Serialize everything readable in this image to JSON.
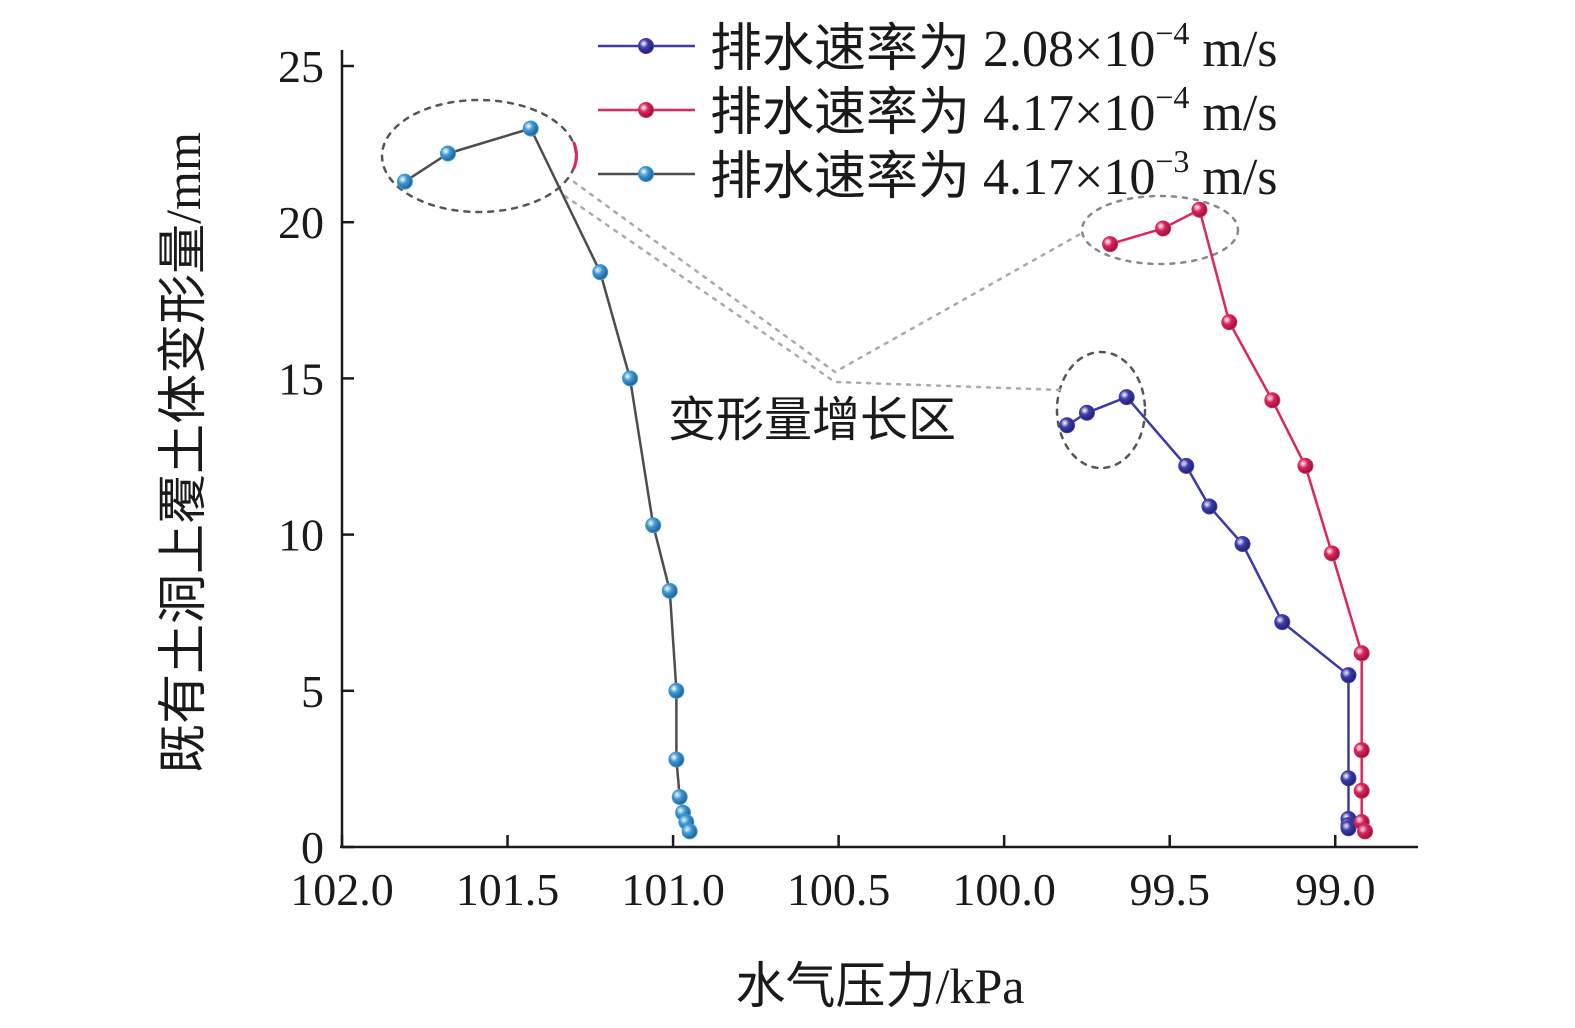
{
  "chart_data": {
    "type": "line",
    "title": "",
    "xlabel": "水气压力/kPa",
    "ylabel": "既有土洞上覆土体变形量/mm",
    "xlim": [
      102.0,
      98.75
    ],
    "ylim": [
      0,
      25
    ],
    "x_reversed": true,
    "x_ticks": [
      "102.0",
      "101.5",
      "101.0",
      "100.5",
      "100.0",
      "99.5",
      "99.0"
    ],
    "y_ticks": [
      "0",
      "5",
      "10",
      "15",
      "20",
      "25"
    ],
    "grid": false,
    "legend_position": "top-right",
    "annotation": "变形量增长区",
    "series": [
      {
        "name_prefix": "排水速率为 ",
        "name_value": "2.08×10",
        "name_exp": "−4",
        "name_unit": " m/s",
        "color": "#3b3aa8",
        "marker_color": "#3f3dab",
        "x": [
          99.81,
          99.75,
          99.63,
          99.45,
          99.38,
          99.28,
          99.16,
          98.96,
          98.96,
          98.96,
          98.96,
          98.96
        ],
        "y": [
          13.5,
          13.9,
          14.4,
          12.2,
          10.9,
          9.7,
          7.2,
          5.5,
          2.2,
          0.9,
          0.7,
          0.6
        ]
      },
      {
        "name_prefix": "排水速率为 ",
        "name_value": "4.17×10",
        "name_exp": "−4",
        "name_unit": " m/s",
        "color": "#e0245e",
        "marker_color": "#d42a5c",
        "x": [
          99.68,
          99.52,
          99.41,
          99.32,
          99.19,
          99.09,
          99.01,
          98.92,
          98.92,
          98.92,
          98.92,
          98.91
        ],
        "y": [
          19.3,
          19.8,
          20.4,
          16.8,
          14.3,
          12.2,
          9.4,
          6.2,
          3.1,
          1.8,
          0.8,
          0.5
        ]
      },
      {
        "name_prefix": "排水速率为 ",
        "name_value": "4.17×10",
        "name_exp": "−3",
        "name_unit": " m/s",
        "color": "#4d4d4d",
        "marker_color": "#3f9ad8",
        "x": [
          101.81,
          101.68,
          101.43,
          101.22,
          101.13,
          101.06,
          101.01,
          100.99,
          100.99,
          100.98,
          100.97,
          100.96,
          100.95
        ],
        "y": [
          21.3,
          22.2,
          23.0,
          18.4,
          15.0,
          10.3,
          8.2,
          5.0,
          2.8,
          1.6,
          1.1,
          0.8,
          0.5
        ]
      }
    ]
  }
}
